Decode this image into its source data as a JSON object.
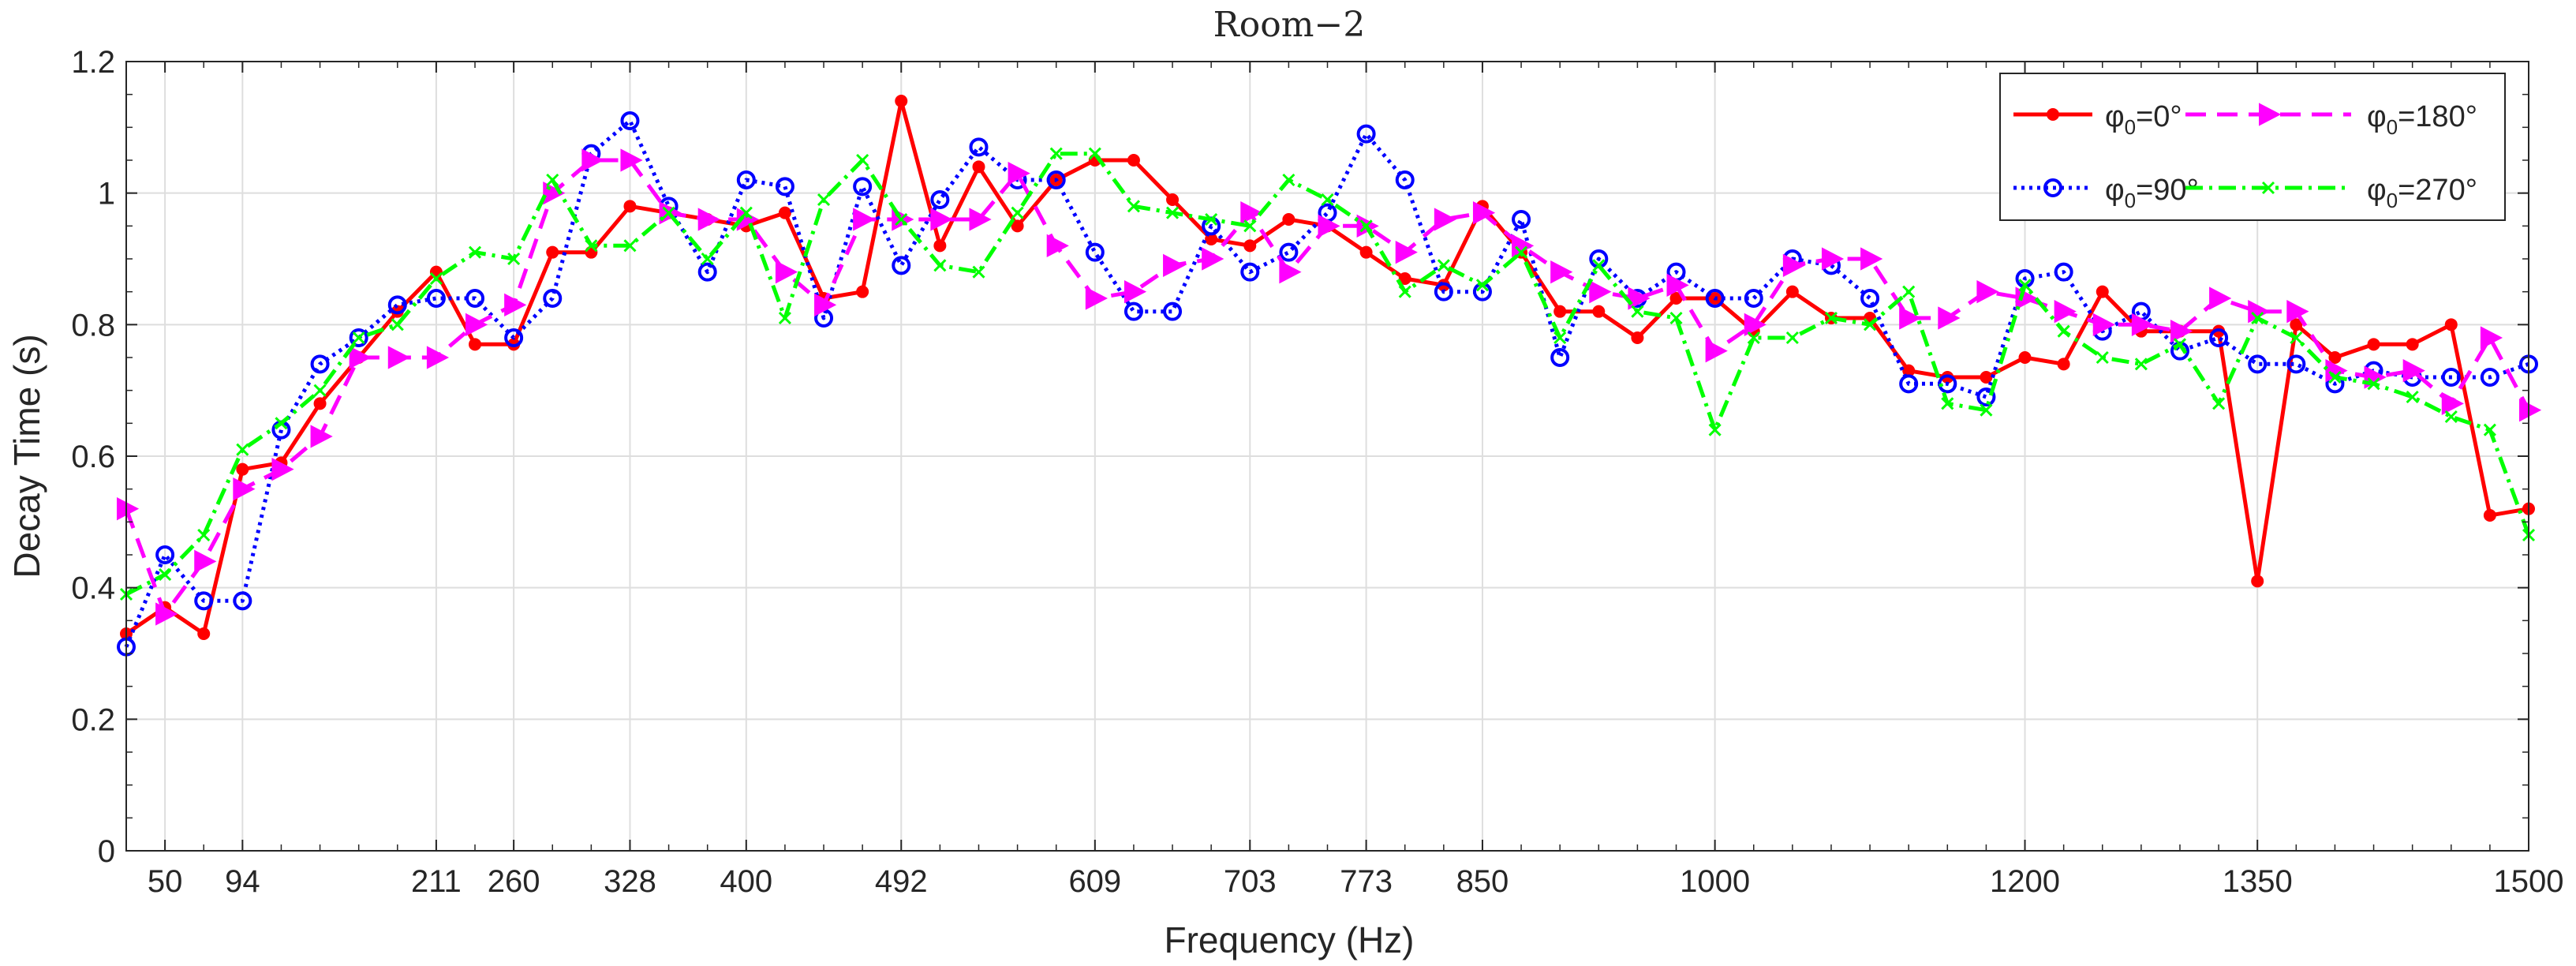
{
  "chart_data": {
    "type": "line",
    "title": "Room−2",
    "xlabel": "Frequency (Hz)",
    "ylabel": "Decay Time (s)",
    "xlim": [
      0,
      1500
    ],
    "ylim": [
      0,
      1.2
    ],
    "grid": true,
    "legend_position": "top-right",
    "x_tick_labels": [
      "50",
      "94",
      "211",
      "260",
      "328",
      "400",
      "492",
      "609",
      "703",
      "773",
      "850",
      "1000",
      "1200",
      "1350",
      "1500"
    ],
    "y_tick_labels": [
      "0",
      "0.2",
      "0.4",
      "0.6",
      "0.8",
      "1",
      "1.2"
    ],
    "series": [
      {
        "name": "φ₀=0°",
        "legend_main": "φ",
        "legend_sub": "0",
        "legend_rest": "=0°",
        "color": "#ff0000",
        "style": "solid",
        "marker": "dot",
        "values": [
          0.33,
          0.37,
          0.33,
          0.58,
          0.59,
          0.68,
          0.75,
          0.82,
          0.88,
          0.77,
          0.77,
          0.91,
          0.91,
          0.98,
          0.97,
          0.96,
          0.95,
          0.97,
          0.84,
          0.85,
          1.14,
          0.92,
          1.04,
          0.95,
          1.02,
          1.05,
          1.05,
          0.99,
          0.93,
          0.92,
          0.96,
          0.95,
          0.91,
          0.87,
          0.86,
          0.98,
          0.91,
          0.82,
          0.82,
          0.78,
          0.84,
          0.84,
          0.79,
          0.85,
          0.81,
          0.81,
          0.73,
          0.72,
          0.72,
          0.75,
          0.74,
          0.85,
          0.79,
          0.79,
          0.79,
          0.41,
          0.8,
          0.75,
          0.77,
          0.77,
          0.8,
          0.51,
          0.52
        ]
      },
      {
        "name": "φ₀=90°",
        "legend_main": "φ",
        "legend_sub": "0",
        "legend_rest": "=90°",
        "color": "#0000ff",
        "style": "dotted",
        "marker": "circle",
        "values": [
          0.31,
          0.45,
          0.38,
          0.38,
          0.64,
          0.74,
          0.78,
          0.83,
          0.84,
          0.84,
          0.78,
          0.84,
          1.06,
          1.11,
          0.98,
          0.88,
          1.02,
          1.01,
          0.81,
          1.01,
          0.89,
          0.99,
          1.07,
          1.02,
          1.02,
          0.91,
          0.82,
          0.82,
          0.95,
          0.88,
          0.91,
          0.97,
          1.09,
          1.02,
          0.85,
          0.85,
          0.96,
          0.75,
          0.9,
          0.84,
          0.88,
          0.84,
          0.84,
          0.9,
          0.89,
          0.84,
          0.71,
          0.71,
          0.69,
          0.87,
          0.88,
          0.79,
          0.82,
          0.76,
          0.78,
          0.74,
          0.74,
          0.71,
          0.73,
          0.72,
          0.72,
          0.72,
          0.74
        ]
      },
      {
        "name": "φ₀=180°",
        "legend_main": "φ",
        "legend_sub": "0",
        "legend_rest": "=180°",
        "color": "#ff00ff",
        "style": "dashed",
        "marker": "triangle-right",
        "values": [
          0.52,
          0.36,
          0.44,
          0.55,
          0.58,
          0.63,
          0.75,
          0.75,
          0.75,
          0.8,
          0.83,
          1.0,
          1.05,
          1.05,
          0.97,
          0.96,
          0.96,
          0.88,
          0.83,
          0.96,
          0.96,
          0.96,
          0.96,
          1.03,
          0.92,
          0.84,
          0.85,
          0.89,
          0.9,
          0.97,
          0.88,
          0.95,
          0.95,
          0.91,
          0.96,
          0.97,
          0.92,
          0.88,
          0.85,
          0.84,
          0.86,
          0.76,
          0.8,
          0.89,
          0.9,
          0.9,
          0.81,
          0.81,
          0.85,
          0.84,
          0.82,
          0.8,
          0.8,
          0.79,
          0.84,
          0.82,
          0.82,
          0.73,
          0.72,
          0.73,
          0.68,
          0.78,
          0.67
        ]
      },
      {
        "name": "φ₀=270°",
        "legend_main": "φ",
        "legend_sub": "0",
        "legend_rest": "=270°",
        "color": "#00ff00",
        "style": "dashdot",
        "marker": "x",
        "values": [
          0.39,
          0.42,
          0.48,
          0.61,
          0.65,
          0.7,
          0.78,
          0.8,
          0.87,
          0.91,
          0.9,
          1.02,
          0.92,
          0.92,
          0.97,
          0.9,
          0.97,
          0.81,
          0.99,
          1.05,
          0.96,
          0.89,
          0.88,
          0.97,
          1.06,
          1.06,
          0.98,
          0.97,
          0.96,
          0.95,
          1.02,
          0.99,
          0.95,
          0.85,
          0.89,
          0.86,
          0.91,
          0.78,
          0.89,
          0.82,
          0.81,
          0.64,
          0.78,
          0.78,
          0.81,
          0.8,
          0.85,
          0.68,
          0.67,
          0.86,
          0.79,
          0.75,
          0.74,
          0.77,
          0.68,
          0.81,
          0.78,
          0.72,
          0.71,
          0.69,
          0.66,
          0.64,
          0.48
        ]
      }
    ]
  }
}
